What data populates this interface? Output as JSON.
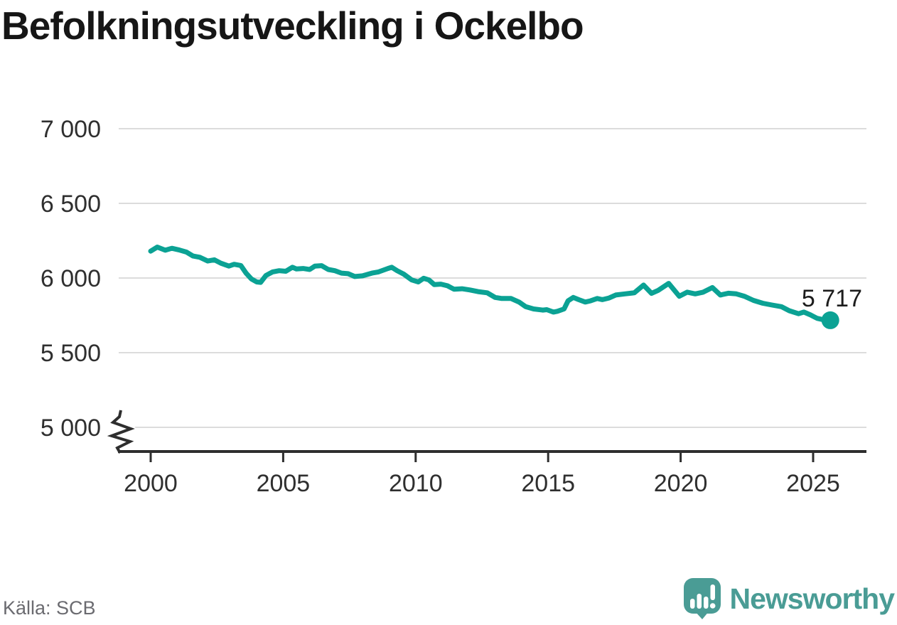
{
  "title": "Befolkningsutveckling i Ockelbo",
  "annotation": {
    "label": "5 717"
  },
  "footer": {
    "source": "Källa: SCB",
    "brand": "Newsworthy"
  },
  "colors": {
    "line": "#0ba294",
    "grid": "#dcdcdc",
    "axis": "#2e2e2e",
    "tick_text": "#2f2f2f",
    "title_text": "#161616",
    "muted_text": "#6b6b70",
    "brand_teal": "#4a9c95"
  },
  "chart_data": {
    "type": "line",
    "title": "Befolkningsutveckling i Ockelbo",
    "xlabel": "",
    "ylabel": "",
    "source": "SCB",
    "grid": "horizontal",
    "legend": "none",
    "y_axis_break_below": 5000,
    "y_range_shown": [
      5000,
      7000
    ],
    "x_range_shown": [
      2000,
      2026
    ],
    "x_ticks": [
      2000,
      2005,
      2010,
      2015,
      2020,
      2025
    ],
    "y_ticks": [
      {
        "value": 5000,
        "label": "5 000"
      },
      {
        "value": 5500,
        "label": "5 500"
      },
      {
        "value": 6000,
        "label": "6 000"
      },
      {
        "value": 6500,
        "label": "6 500"
      },
      {
        "value": 7000,
        "label": "7 000"
      }
    ],
    "end_point": {
      "x": 2025.65,
      "value": 5717,
      "label": "5 717"
    },
    "series": [
      {
        "name": "Befolkning i Ockelbo",
        "points": [
          [
            2000.0,
            6180
          ],
          [
            2000.25,
            6207
          ],
          [
            2000.55,
            6186
          ],
          [
            2000.8,
            6199
          ],
          [
            2001.05,
            6189
          ],
          [
            2001.35,
            6174
          ],
          [
            2001.6,
            6147
          ],
          [
            2001.85,
            6139
          ],
          [
            2002.15,
            6114
          ],
          [
            2002.4,
            6122
          ],
          [
            2002.65,
            6099
          ],
          [
            2002.95,
            6080
          ],
          [
            2003.15,
            6092
          ],
          [
            2003.4,
            6084
          ],
          [
            2003.6,
            6033
          ],
          [
            2003.8,
            5994
          ],
          [
            2004.0,
            5974
          ],
          [
            2004.15,
            5971
          ],
          [
            2004.35,
            6017
          ],
          [
            2004.6,
            6041
          ],
          [
            2004.85,
            6049
          ],
          [
            2005.1,
            6045
          ],
          [
            2005.35,
            6072
          ],
          [
            2005.5,
            6061
          ],
          [
            2005.75,
            6064
          ],
          [
            2006.0,
            6057
          ],
          [
            2006.2,
            6080
          ],
          [
            2006.45,
            6083
          ],
          [
            2006.7,
            6057
          ],
          [
            2006.95,
            6049
          ],
          [
            2007.2,
            6033
          ],
          [
            2007.45,
            6029
          ],
          [
            2007.7,
            6010
          ],
          [
            2008.0,
            6015
          ],
          [
            2008.35,
            6033
          ],
          [
            2008.6,
            6041
          ],
          [
            2008.95,
            6064
          ],
          [
            2009.1,
            6072
          ],
          [
            2009.3,
            6049
          ],
          [
            2009.55,
            6026
          ],
          [
            2009.85,
            5987
          ],
          [
            2010.1,
            5974
          ],
          [
            2010.3,
            5998
          ],
          [
            2010.5,
            5987
          ],
          [
            2010.7,
            5956
          ],
          [
            2010.95,
            5959
          ],
          [
            2011.2,
            5948
          ],
          [
            2011.45,
            5925
          ],
          [
            2011.75,
            5928
          ],
          [
            2012.05,
            5920
          ],
          [
            2012.35,
            5909
          ],
          [
            2012.7,
            5901
          ],
          [
            2013.0,
            5870
          ],
          [
            2013.25,
            5863
          ],
          [
            2013.6,
            5863
          ],
          [
            2013.9,
            5839
          ],
          [
            2014.15,
            5808
          ],
          [
            2014.45,
            5793
          ],
          [
            2014.8,
            5785
          ],
          [
            2014.95,
            5788
          ],
          [
            2015.2,
            5772
          ],
          [
            2015.35,
            5777
          ],
          [
            2015.6,
            5793
          ],
          [
            2015.75,
            5847
          ],
          [
            2015.95,
            5870
          ],
          [
            2016.15,
            5855
          ],
          [
            2016.4,
            5839
          ],
          [
            2016.6,
            5847
          ],
          [
            2016.85,
            5863
          ],
          [
            2017.05,
            5855
          ],
          [
            2017.3,
            5866
          ],
          [
            2017.55,
            5886
          ],
          [
            2017.9,
            5894
          ],
          [
            2018.25,
            5901
          ],
          [
            2018.6,
            5953
          ],
          [
            2018.9,
            5897
          ],
          [
            2019.15,
            5917
          ],
          [
            2019.55,
            5964
          ],
          [
            2019.95,
            5878
          ],
          [
            2020.25,
            5905
          ],
          [
            2020.55,
            5894
          ],
          [
            2020.85,
            5905
          ],
          [
            2021.2,
            5936
          ],
          [
            2021.5,
            5886
          ],
          [
            2021.8,
            5898
          ],
          [
            2022.1,
            5894
          ],
          [
            2022.4,
            5878
          ],
          [
            2022.75,
            5850
          ],
          [
            2023.1,
            5831
          ],
          [
            2023.45,
            5819
          ],
          [
            2023.8,
            5808
          ],
          [
            2024.1,
            5781
          ],
          [
            2024.45,
            5761
          ],
          [
            2024.65,
            5772
          ],
          [
            2024.9,
            5753
          ],
          [
            2025.15,
            5730
          ],
          [
            2025.45,
            5718
          ],
          [
            2025.65,
            5717
          ]
        ]
      }
    ]
  }
}
